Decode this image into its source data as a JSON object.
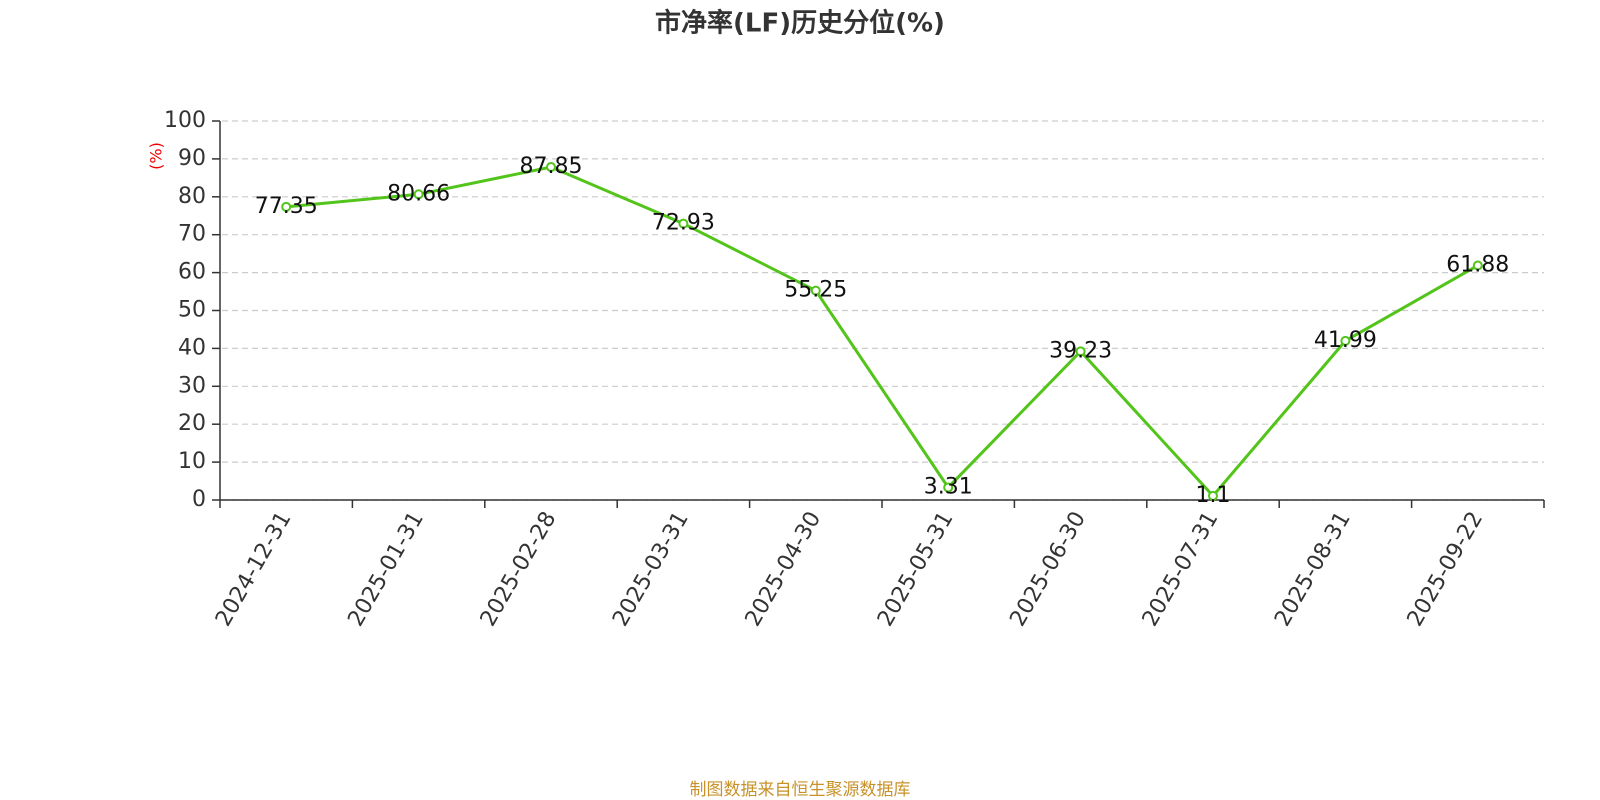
{
  "chart_data": {
    "type": "line",
    "title": "市净率(LF)历史分位(%)",
    "ylabel": "(%)",
    "categories": [
      "2024-12-31",
      "2025-01-31",
      "2025-02-28",
      "2025-03-31",
      "2025-04-30",
      "2025-05-31",
      "2025-06-30",
      "2025-07-31",
      "2025-08-31",
      "2025-09-22"
    ],
    "series": [
      {
        "name": "市净率(LF)历史分位",
        "color": "#52c41a",
        "values": [
          77.35,
          80.66,
          87.85,
          72.93,
          55.25,
          3.31,
          39.23,
          1.1,
          41.99,
          61.88
        ]
      }
    ],
    "ylim": [
      0,
      100
    ],
    "yticks": [
      0,
      10,
      20,
      30,
      40,
      50,
      60,
      70,
      80,
      90,
      100
    ],
    "grid": true,
    "source": "制图数据来自恒生聚源数据库"
  }
}
